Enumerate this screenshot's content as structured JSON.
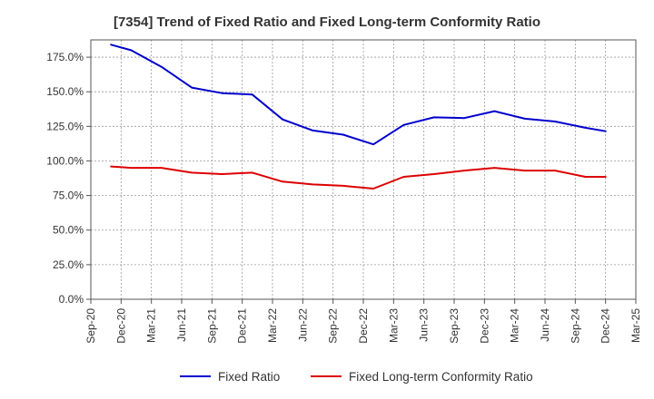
{
  "chart_data": {
    "type": "line",
    "title": "[7354]  Trend of Fixed Ratio and Fixed Long-term Conformity Ratio",
    "xlabel": "",
    "ylabel": "",
    "x_tick_labels": [
      "Sep-20",
      "Dec-20",
      "Mar-21",
      "Jun-21",
      "Sep-21",
      "Dec-21",
      "Mar-22",
      "Jun-22",
      "Sep-22",
      "Dec-22",
      "Mar-23",
      "Jun-23",
      "Sep-23",
      "Dec-23",
      "Mar-24",
      "Jun-24",
      "Sep-24",
      "Dec-24",
      "Mar-25"
    ],
    "y_tick_labels": [
      "0.0%",
      "25.0%",
      "50.0%",
      "75.0%",
      "100.0%",
      "125.0%",
      "150.0%",
      "175.0%"
    ],
    "y_ticks": [
      0,
      25,
      50,
      75,
      100,
      125,
      150,
      175
    ],
    "ylim": [
      0,
      187.5
    ],
    "grid": true,
    "legend_position": "bottom",
    "categories": [
      "Dec-20",
      "Mar-21",
      "Jun-21",
      "Sep-21",
      "Dec-21",
      "Mar-22",
      "Jun-22",
      "Sep-22",
      "Dec-22",
      "Mar-23",
      "Jun-23",
      "Sep-23",
      "Dec-23",
      "Mar-24",
      "Jun-24",
      "Sep-24",
      "Dec-24"
    ],
    "x_values": [
      "Nov-20",
      "Jan-21",
      "Apr-21",
      "Jul-21",
      "Oct-21",
      "Jan-22",
      "Apr-22",
      "Jul-22",
      "Oct-22",
      "Jan-23",
      "Apr-23",
      "Jul-23",
      "Oct-23",
      "Jan-24",
      "Apr-24",
      "Jul-24",
      "Oct-24",
      "Dec-24"
    ],
    "series": [
      {
        "name": "Fixed Ratio",
        "color": "#0000cc",
        "values": [
          184,
          180,
          168,
          153,
          149,
          148,
          130,
          122,
          119,
          112,
          126,
          131.5,
          131,
          136,
          130.5,
          128.5,
          124,
          121.5
        ]
      },
      {
        "name": "Fixed Long-term Conformity Ratio",
        "color": "#dd0000",
        "values": [
          96,
          95,
          95,
          91.5,
          90.5,
          91.5,
          85,
          83,
          82,
          80,
          88.5,
          90.5,
          93,
          95,
          93,
          93,
          88.5,
          88.5
        ]
      }
    ]
  }
}
